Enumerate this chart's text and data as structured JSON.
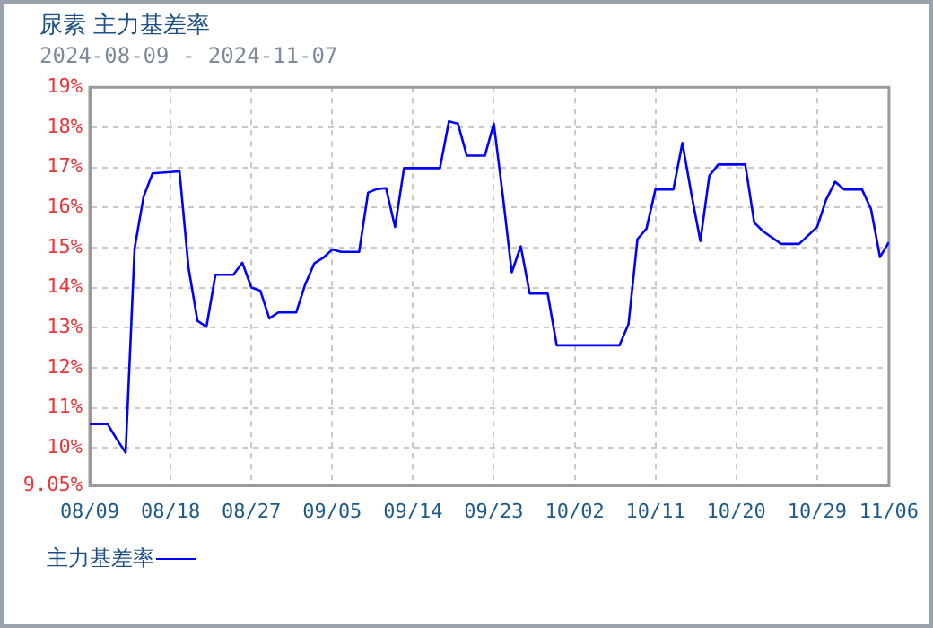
{
  "chart_data": {
    "type": "line",
    "title": "尿素  主力基差率",
    "subtitle": "2024-08-09 - 2024-11-07",
    "x": [
      "2024-08-09",
      "2024-08-11",
      "2024-08-12",
      "2024-08-13",
      "2024-08-14",
      "2024-08-15",
      "2024-08-16",
      "2024-08-19",
      "2024-08-20",
      "2024-08-21",
      "2024-08-22",
      "2024-08-23",
      "2024-08-25",
      "2024-08-26",
      "2024-08-27",
      "2024-08-28",
      "2024-08-29",
      "2024-08-30",
      "2024-09-01",
      "2024-09-02",
      "2024-09-03",
      "2024-09-04",
      "2024-09-05",
      "2024-09-06",
      "2024-09-08",
      "2024-09-09",
      "2024-09-10",
      "2024-09-11",
      "2024-09-12",
      "2024-09-13",
      "2024-09-17",
      "2024-09-18",
      "2024-09-19",
      "2024-09-20",
      "2024-09-22",
      "2024-09-23",
      "2024-09-24",
      "2024-09-25",
      "2024-09-26",
      "2024-09-27",
      "2024-09-29",
      "2024-09-30",
      "2024-10-07",
      "2024-10-08",
      "2024-10-09",
      "2024-10-10",
      "2024-10-11",
      "2024-10-13",
      "2024-10-14",
      "2024-10-15",
      "2024-10-16",
      "2024-10-17",
      "2024-10-18",
      "2024-10-21",
      "2024-10-22",
      "2024-10-23",
      "2024-10-25",
      "2024-10-27",
      "2024-10-29",
      "2024-10-30",
      "2024-10-31",
      "2024-11-01",
      "2024-11-03",
      "2024-11-04",
      "2024-11-05",
      "2024-11-06"
    ],
    "series": [
      {
        "name": "主力基差率",
        "color": "#0000ff",
        "values": [
          10.59,
          10.59,
          10.22,
          9.88,
          14.98,
          16.27,
          16.85,
          16.9,
          14.5,
          13.17,
          13.02,
          14.32,
          14.32,
          14.62,
          14.0,
          13.92,
          13.23,
          13.38,
          13.38,
          14.08,
          14.6,
          14.74,
          14.95,
          14.89,
          14.89,
          16.37,
          16.46,
          16.48,
          15.51,
          16.98,
          16.98,
          18.15,
          18.09,
          17.29,
          17.29,
          18.09,
          16.3,
          14.38,
          15.03,
          13.85,
          13.85,
          12.56,
          12.56,
          13.09,
          15.21,
          15.47,
          16.45,
          16.45,
          17.61,
          16.34,
          15.16,
          16.79,
          17.07,
          17.07,
          15.62,
          15.4,
          15.09,
          15.09,
          15.51,
          16.19,
          16.64,
          16.45,
          16.45,
          15.96,
          14.76,
          15.13
        ]
      }
    ],
    "xlim": [
      "2024-08-09",
      "2024-11-06"
    ],
    "xticks": [
      {
        "value": "2024-08-09",
        "label": "08/09"
      },
      {
        "value": "2024-08-18",
        "label": "08/18"
      },
      {
        "value": "2024-08-27",
        "label": "08/27"
      },
      {
        "value": "2024-09-05",
        "label": "09/05"
      },
      {
        "value": "2024-09-14",
        "label": "09/14"
      },
      {
        "value": "2024-09-23",
        "label": "09/23"
      },
      {
        "value": "2024-10-02",
        "label": "10/02"
      },
      {
        "value": "2024-10-11",
        "label": "10/11"
      },
      {
        "value": "2024-10-20",
        "label": "10/20"
      },
      {
        "value": "2024-10-29",
        "label": "10/29"
      },
      {
        "value": "2024-11-06",
        "label": "11/06"
      }
    ],
    "ylim": [
      9.05,
      19
    ],
    "yticks": [
      {
        "value": 9.05,
        "label": "9.05%"
      },
      {
        "value": 10,
        "label": "10%"
      },
      {
        "value": 11,
        "label": "11%"
      },
      {
        "value": 12,
        "label": "12%"
      },
      {
        "value": 13,
        "label": "13%"
      },
      {
        "value": 14,
        "label": "14%"
      },
      {
        "value": 15,
        "label": "15%"
      },
      {
        "value": 16,
        "label": "16%"
      },
      {
        "value": 17,
        "label": "17%"
      },
      {
        "value": 18,
        "label": "18%"
      },
      {
        "value": 19,
        "label": "19%"
      }
    ],
    "grid": true,
    "legend": "bottom",
    "marker": "none",
    "line_style": "solid"
  }
}
